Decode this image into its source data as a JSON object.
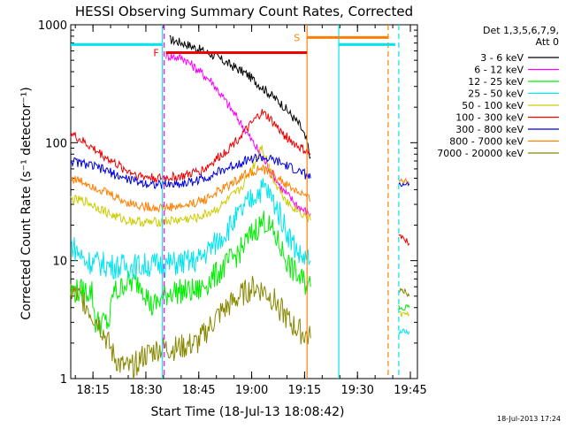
{
  "chart_data": {
    "type": "line",
    "title": "HESSI Observing Summary Count Rates, Corrected",
    "xlabel": "Start Time (18-Jul-13 18:08:42)",
    "ylabel": "Corrected Count Rate (s⁻¹ detector⁻¹)",
    "footer": "18-Jul-2013 17:24",
    "x_scale": "time",
    "x_range_minutes": [
      "18:08:42",
      "19:47:00"
    ],
    "x_ticks": [
      "18:15",
      "18:30",
      "18:45",
      "19:00",
      "19:15",
      "19:30",
      "19:45"
    ],
    "y_scale": "log",
    "ylim": [
      1,
      1000
    ],
    "y_ticks": [
      "1",
      "10",
      "100",
      "1000"
    ],
    "legend": {
      "position": "right",
      "header_line1": "Det 1,3,5,6,7,9,",
      "header_line2": "Att 0"
    },
    "colors": {
      "black": "#000000",
      "magenta": "#ff00ff",
      "green": "#00ee00",
      "cyan": "#00e5ee",
      "yellow": "#cccc00",
      "red": "#ee0000",
      "blue": "#0000dd",
      "orange": "#ff7f00",
      "olive": "#888800"
    },
    "series": [
      {
        "name": "3 - 6 keV",
        "color": "#000000",
        "points": [
          [
            28,
            750
          ],
          [
            32,
            700
          ],
          [
            40,
            560
          ],
          [
            50,
            380
          ],
          [
            60,
            210
          ],
          [
            65,
            140
          ],
          [
            67,
            100
          ],
          [
            68,
            75
          ]
        ]
      },
      {
        "name": "6 - 12 keV",
        "color": "#ff00ff",
        "points": [
          [
            27,
            550
          ],
          [
            32,
            520
          ],
          [
            40,
            330
          ],
          [
            48,
            150
          ],
          [
            55,
            70
          ],
          [
            60,
            40
          ],
          [
            65,
            28
          ],
          [
            68,
            25
          ]
        ]
      },
      {
        "name": "12 - 25 keV",
        "color": "#00ee00",
        "points": [
          [
            0,
            5.5
          ],
          [
            6,
            5.5
          ],
          [
            7,
            3
          ],
          [
            11,
            3
          ],
          [
            12,
            5.5
          ],
          [
            14,
            5.5
          ],
          [
            15,
            6.5
          ],
          [
            20,
            6.5
          ],
          [
            23,
            4
          ],
          [
            28,
            5.5
          ],
          [
            30,
            5.5
          ],
          [
            36,
            5.5
          ],
          [
            42,
            8
          ],
          [
            48,
            12
          ],
          [
            52,
            18
          ],
          [
            55,
            22
          ],
          [
            58,
            16
          ],
          [
            62,
            9
          ],
          [
            65,
            7
          ],
          [
            68,
            6
          ]
        ]
      },
      {
        "name": "25 - 50 keV",
        "color": "#00e5ee",
        "points": [
          [
            0,
            14
          ],
          [
            4,
            10
          ],
          [
            8,
            9.5
          ],
          [
            12,
            9
          ],
          [
            14,
            9
          ],
          [
            18,
            9
          ],
          [
            30,
            9.5
          ],
          [
            36,
            10
          ],
          [
            42,
            15
          ],
          [
            48,
            25
          ],
          [
            52,
            36
          ],
          [
            55,
            42
          ],
          [
            58,
            30
          ],
          [
            62,
            16
          ],
          [
            65,
            11
          ],
          [
            68,
            10
          ]
        ]
      },
      {
        "name": "50 - 100 keV",
        "color": "#cccc00",
        "points": [
          [
            0,
            33
          ],
          [
            4,
            32
          ],
          [
            8,
            28
          ],
          [
            12,
            24
          ],
          [
            16,
            22
          ],
          [
            22,
            21
          ],
          [
            30,
            22
          ],
          [
            36,
            23
          ],
          [
            42,
            28
          ],
          [
            48,
            40
          ],
          [
            52,
            65
          ],
          [
            54,
            95
          ],
          [
            55,
            80
          ],
          [
            58,
            45
          ],
          [
            62,
            30
          ],
          [
            65,
            26
          ],
          [
            68,
            22
          ]
        ]
      },
      {
        "name": "100 - 300 keV",
        "color": "#ee0000",
        "points": [
          [
            0,
            120
          ],
          [
            5,
            95
          ],
          [
            10,
            75
          ],
          [
            15,
            60
          ],
          [
            20,
            52
          ],
          [
            25,
            50
          ],
          [
            32,
            52
          ],
          [
            38,
            60
          ],
          [
            44,
            85
          ],
          [
            50,
            130
          ],
          [
            54,
            180
          ],
          [
            56,
            165
          ],
          [
            60,
            120
          ],
          [
            64,
            95
          ],
          [
            68,
            80
          ]
        ]
      },
      {
        "name": "300 - 800 keV",
        "color": "#0000dd",
        "points": [
          [
            0,
            70
          ],
          [
            5,
            65
          ],
          [
            10,
            58
          ],
          [
            15,
            50
          ],
          [
            20,
            46
          ],
          [
            25,
            44
          ],
          [
            32,
            45
          ],
          [
            38,
            50
          ],
          [
            44,
            60
          ],
          [
            50,
            72
          ],
          [
            54,
            75
          ],
          [
            58,
            70
          ],
          [
            62,
            62
          ],
          [
            66,
            55
          ],
          [
            68,
            50
          ]
        ]
      },
      {
        "name": "800 - 7000 keV",
        "color": "#ff7f00",
        "points": [
          [
            0,
            50
          ],
          [
            5,
            45
          ],
          [
            10,
            38
          ],
          [
            15,
            32
          ],
          [
            20,
            29
          ],
          [
            25,
            28
          ],
          [
            32,
            29
          ],
          [
            38,
            33
          ],
          [
            44,
            42
          ],
          [
            50,
            55
          ],
          [
            54,
            60
          ],
          [
            58,
            52
          ],
          [
            62,
            42
          ],
          [
            66,
            36
          ],
          [
            68,
            32
          ]
        ]
      },
      {
        "name": "7000 - 20000 keV",
        "color": "#888800",
        "points": [
          [
            0,
            5.5
          ],
          [
            4,
            4.5
          ],
          [
            6,
            3.5
          ],
          [
            8,
            3
          ],
          [
            10,
            2.2
          ],
          [
            12,
            1.6
          ],
          [
            14,
            1.3
          ],
          [
            17,
            1.2
          ],
          [
            20,
            1.5
          ],
          [
            25,
            1.8
          ],
          [
            30,
            1.8
          ],
          [
            36,
            2
          ],
          [
            42,
            3.5
          ],
          [
            48,
            5
          ],
          [
            52,
            6
          ],
          [
            55,
            5.5
          ],
          [
            58,
            4.5
          ],
          [
            62,
            3
          ],
          [
            65,
            2.5
          ],
          [
            68,
            2.2
          ]
        ]
      }
    ],
    "late_segments": [
      {
        "series": "100 - 300 keV",
        "points": [
          [
            93,
            16
          ],
          [
            95,
            15
          ],
          [
            96,
            14
          ]
        ]
      },
      {
        "series": "300 - 800 keV",
        "points": [
          [
            93,
            45
          ],
          [
            95,
            44
          ],
          [
            96,
            45
          ]
        ]
      },
      {
        "series": "800 - 7000 keV",
        "points": [
          [
            93,
            47
          ],
          [
            95,
            47
          ],
          [
            96,
            46
          ]
        ]
      },
      {
        "series": "7000 - 20000 keV",
        "points": [
          [
            93,
            5.5
          ],
          [
            95,
            5.5
          ],
          [
            96,
            5
          ]
        ]
      },
      {
        "series": "12 - 25 keV",
        "points": [
          [
            93,
            4
          ],
          [
            95,
            4
          ],
          [
            96,
            4
          ]
        ]
      },
      {
        "series": "25 - 50 keV",
        "points": [
          [
            93,
            2.5
          ],
          [
            95,
            2.5
          ],
          [
            96,
            2.5
          ]
        ]
      },
      {
        "series": "50 - 100 keV",
        "points": [
          [
            93,
            3.5
          ],
          [
            95,
            3.5
          ],
          [
            96,
            3.5
          ]
        ]
      }
    ],
    "annotations": {
      "flare_label": "F",
      "flare_bar": {
        "x0": 27,
        "x1": 67,
        "y": 580,
        "color": "#ee0000"
      },
      "saa_label": "S",
      "saa_bar": {
        "x0": 67,
        "x1": 90,
        "y": 780,
        "color": "#ff7f00"
      },
      "night_bars": [
        {
          "x0": 0,
          "x1": 26,
          "y": 680,
          "color": "#00e5ee"
        },
        {
          "x0": 76,
          "x1": 92,
          "y": 680,
          "color": "#00e5ee"
        }
      ],
      "vlines_solid": [
        {
          "x": 26,
          "color": "#00e5ee"
        },
        {
          "x": 67,
          "color": "#ff7f00"
        },
        {
          "x": 76,
          "color": "#00e5ee"
        }
      ],
      "vlines_dashed": [
        {
          "x": 26.5,
          "color": "#ff00ff"
        },
        {
          "x": 90,
          "color": "#ff7f00"
        },
        {
          "x": 93,
          "color": "#00e5ee"
        }
      ]
    }
  }
}
